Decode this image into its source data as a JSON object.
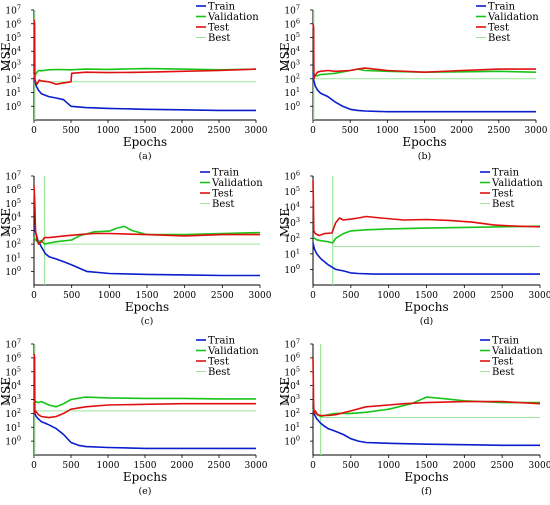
{
  "figure": {
    "panel_count": 6
  },
  "colors": {
    "train": "#0a1ecc",
    "validation": "#18c418",
    "test": "#e01010",
    "best": "#9be59b",
    "axis": "#000000"
  },
  "chart_data": [
    {
      "type": "line",
      "panel_label": "(a)",
      "xlabel": "Epochs",
      "ylabel": "MSE",
      "xlim": [
        0,
        3000
      ],
      "xticks": [
        0,
        500,
        1000,
        1500,
        2000,
        2500,
        3000
      ],
      "yscale": "log",
      "ylim_exp": [
        -1,
        7
      ],
      "yticks_exp": [
        0,
        1,
        2,
        3,
        4,
        5,
        6,
        7
      ],
      "legend": {
        "position": "top-right",
        "labels": [
          "Train",
          "Validation",
          "Test",
          "Best"
        ]
      },
      "best_epoch": 10,
      "best_value": 60,
      "series": [
        {
          "name": "Train",
          "x": [
            0,
            10,
            30,
            60,
            100,
            200,
            300,
            400,
            500,
            700,
            1000,
            1500,
            2000,
            2500,
            3000
          ],
          "y": [
            300,
            80,
            30,
            15,
            8,
            5,
            4,
            3,
            1,
            0.8,
            0.7,
            0.6,
            0.55,
            0.5,
            0.5
          ]
        },
        {
          "name": "Validation",
          "x": [
            0,
            10,
            30,
            60,
            100,
            200,
            300,
            500,
            700,
            1000,
            1500,
            2000,
            2500,
            3000
          ],
          "y": [
            200,
            150,
            250,
            400,
            380,
            450,
            470,
            450,
            500,
            480,
            550,
            500,
            450,
            500
          ]
        },
        {
          "name": "Test",
          "x": [
            0,
            8,
            12,
            20,
            40,
            70,
            100,
            200,
            300,
            400,
            500,
            510,
            700,
            1000,
            1500,
            2000,
            2500,
            3000
          ],
          "y": [
            2000000,
            1000000,
            100,
            60,
            40,
            80,
            70,
            60,
            40,
            50,
            60,
            250,
            300,
            280,
            300,
            350,
            400,
            500
          ]
        }
      ]
    },
    {
      "type": "line",
      "panel_label": "(b)",
      "xlabel": "Epochs",
      "ylabel": "MSE",
      "xlim": [
        0,
        3000
      ],
      "xticks": [
        0,
        500,
        1000,
        1500,
        2000,
        2500,
        3000
      ],
      "yscale": "log",
      "ylim_exp": [
        -1,
        7
      ],
      "yticks_exp": [
        0,
        1,
        2,
        3,
        4,
        5,
        6,
        7
      ],
      "legend": {
        "position": "top-right",
        "labels": [
          "Train",
          "Validation",
          "Test",
          "Best"
        ]
      },
      "best_epoch": 10,
      "best_value": 100,
      "series": [
        {
          "name": "Train",
          "x": [
            0,
            10,
            30,
            60,
            100,
            200,
            300,
            400,
            500,
            600,
            700,
            1000,
            1500,
            2000,
            2500,
            3000
          ],
          "y": [
            300,
            80,
            30,
            15,
            9,
            5,
            2,
            1,
            0.6,
            0.5,
            0.45,
            0.4,
            0.4,
            0.4,
            0.4,
            0.4
          ]
        },
        {
          "name": "Validation",
          "x": [
            0,
            10,
            30,
            100,
            200,
            300,
            500,
            600,
            700,
            1000,
            1500,
            2000,
            2500,
            3000
          ],
          "y": [
            300,
            250,
            150,
            200,
            220,
            250,
            400,
            500,
            400,
            350,
            300,
            320,
            350,
            300
          ]
        },
        {
          "name": "Test",
          "x": [
            0,
            8,
            12,
            20,
            60,
            100,
            200,
            300,
            500,
            600,
            700,
            1000,
            1500,
            2000,
            2500,
            3000
          ],
          "y": [
            1000000,
            500000,
            100,
            150,
            300,
            350,
            400,
            350,
            400,
            500,
            600,
            400,
            300,
            400,
            500,
            500
          ]
        }
      ]
    },
    {
      "type": "line",
      "panel_label": "(c)",
      "xlabel": "Epochs",
      "ylabel": "MSE",
      "xlim": [
        0,
        3000
      ],
      "xticks": [
        0,
        500,
        1000,
        1500,
        2000,
        2500,
        3000
      ],
      "yscale": "log",
      "ylim_exp": [
        -1,
        7
      ],
      "yticks_exp": [
        0,
        1,
        2,
        3,
        4,
        5,
        6,
        7
      ],
      "legend": {
        "position": "top-right",
        "labels": [
          "Train",
          "Validation",
          "Test",
          "Best"
        ]
      },
      "best_epoch": 140,
      "best_value": 100,
      "series": [
        {
          "name": "Train",
          "x": [
            0,
            20,
            50,
            100,
            150,
            200,
            300,
            400,
            500,
            700,
            1000,
            1500,
            2000,
            2500,
            3000
          ],
          "y": [
            2000,
            800,
            200,
            60,
            20,
            12,
            8,
            5,
            3,
            1,
            0.7,
            0.6,
            0.55,
            0.5,
            0.5
          ]
        },
        {
          "name": "Validation",
          "x": [
            0,
            20,
            50,
            100,
            140,
            200,
            300,
            500,
            600,
            800,
            1000,
            1100,
            1200,
            1300,
            1500,
            2000,
            2500,
            3000
          ],
          "y": [
            300,
            200,
            150,
            180,
            100,
            120,
            150,
            200,
            400,
            800,
            900,
            1500,
            2000,
            1000,
            500,
            500,
            600,
            700
          ]
        },
        {
          "name": "Test",
          "x": [
            0,
            10,
            20,
            40,
            60,
            100,
            140,
            200,
            400,
            600,
            800,
            1000,
            1500,
            2000,
            2500,
            3000
          ],
          "y": [
            2000000,
            100000,
            1000,
            200,
            100,
            150,
            300,
            300,
            400,
            500,
            600,
            600,
            500,
            400,
            500,
            500
          ]
        }
      ]
    },
    {
      "type": "line",
      "panel_label": "(d)",
      "xlabel": "Epochs",
      "ylabel": "MSE",
      "xlim": [
        0,
        3000
      ],
      "xticks": [
        0,
        500,
        1000,
        1500,
        2000,
        2500,
        3000
      ],
      "yscale": "log",
      "ylim_exp": [
        -1,
        6
      ],
      "yticks_exp": [
        0,
        1,
        2,
        3,
        4,
        5,
        6
      ],
      "legend": {
        "position": "top-right",
        "labels": [
          "Train",
          "Validation",
          "Test",
          "Best"
        ]
      },
      "best_epoch": 260,
      "best_value": 30,
      "series": [
        {
          "name": "Train",
          "x": [
            0,
            20,
            50,
            100,
            200,
            300,
            400,
            500,
            600,
            800,
            1000,
            1500,
            2000,
            2500,
            3000
          ],
          "y": [
            50,
            20,
            10,
            5,
            2,
            1,
            0.8,
            0.6,
            0.55,
            0.5,
            0.5,
            0.5,
            0.5,
            0.5,
            0.5
          ]
        },
        {
          "name": "Validation",
          "x": [
            0,
            20,
            50,
            100,
            200,
            260,
            300,
            400,
            500,
            700,
            1000,
            1500,
            2000,
            2500,
            3000
          ],
          "y": [
            120,
            100,
            80,
            70,
            60,
            50,
            100,
            200,
            300,
            350,
            400,
            450,
            500,
            550,
            600
          ]
        },
        {
          "name": "Test",
          "x": [
            0,
            5,
            10,
            30,
            80,
            150,
            250,
            300,
            350,
            400,
            500,
            600,
            700,
            900,
            1200,
            1500,
            1800,
            2100,
            2400,
            2700,
            3000
          ],
          "y": [
            500000,
            20000,
            300,
            200,
            150,
            200,
            220,
            1000,
            2000,
            1500,
            1700,
            2000,
            2500,
            2000,
            1500,
            1600,
            1400,
            1100,
            700,
            600,
            550
          ]
        }
      ]
    },
    {
      "type": "line",
      "panel_label": "(e)",
      "xlabel": "Epochs",
      "ylabel": "MSE",
      "xlim": [
        0,
        3000
      ],
      "xticks": [
        0,
        500,
        1000,
        1500,
        2000,
        2500,
        3000
      ],
      "yscale": "log",
      "ylim_exp": [
        -1,
        7
      ],
      "yticks_exp": [
        0,
        1,
        2,
        3,
        4,
        5,
        6,
        7
      ],
      "legend": {
        "position": "top-right",
        "labels": [
          "Train",
          "Validation",
          "Test",
          "Best"
        ]
      },
      "best_epoch": 10,
      "best_value": 150,
      "series": [
        {
          "name": "Train",
          "x": [
            0,
            10,
            30,
            60,
            100,
            150,
            200,
            300,
            400,
            500,
            600,
            700,
            1000,
            1500,
            2000,
            2500,
            3000
          ],
          "y": [
            150,
            100,
            60,
            40,
            25,
            20,
            15,
            8,
            3,
            0.8,
            0.5,
            0.4,
            0.35,
            0.3,
            0.3,
            0.3,
            0.3
          ]
        },
        {
          "name": "Validation",
          "x": [
            0,
            10,
            30,
            60,
            100,
            200,
            300,
            400,
            500,
            700,
            1000,
            1500,
            2000,
            2500,
            3000
          ],
          "y": [
            800,
            600,
            700,
            600,
            700,
            400,
            300,
            500,
            1000,
            1500,
            1300,
            1200,
            1200,
            1100,
            1100
          ]
        },
        {
          "name": "Test",
          "x": [
            0,
            8,
            12,
            20,
            60,
            100,
            200,
            300,
            400,
            500,
            700,
            1000,
            1500,
            2000,
            2500,
            3000
          ],
          "y": [
            2000000,
            1000000,
            100,
            150,
            80,
            60,
            50,
            60,
            100,
            200,
            300,
            400,
            450,
            500,
            500,
            500
          ]
        }
      ]
    },
    {
      "type": "line",
      "panel_label": "(f)",
      "xlabel": "Epochs",
      "ylabel": "MSE",
      "xlim": [
        0,
        3000
      ],
      "xticks": [
        0,
        500,
        1000,
        1500,
        2000,
        2500,
        3000
      ],
      "yscale": "log",
      "ylim_exp": [
        -1,
        7
      ],
      "yticks_exp": [
        0,
        1,
        2,
        3,
        4,
        5,
        6,
        7
      ],
      "legend": {
        "position": "top-right",
        "labels": [
          "Train",
          "Validation",
          "Test",
          "Best"
        ]
      },
      "best_epoch": 100,
      "best_value": 50,
      "series": [
        {
          "name": "Train",
          "x": [
            0,
            20,
            50,
            100,
            150,
            200,
            300,
            400,
            500,
            600,
            700,
            1000,
            1500,
            2000,
            2500,
            3000
          ],
          "y": [
            150,
            80,
            40,
            20,
            12,
            8,
            5,
            3,
            1.5,
            1,
            0.8,
            0.7,
            0.6,
            0.55,
            0.5,
            0.5
          ]
        },
        {
          "name": "Validation",
          "x": [
            0,
            10,
            30,
            60,
            100,
            200,
            300,
            500,
            700,
            1000,
            1300,
            1500,
            1700,
            2000,
            2500,
            3000
          ],
          "y": [
            200,
            150,
            100,
            80,
            60,
            80,
            100,
            100,
            120,
            200,
            500,
            1500,
            1200,
            800,
            600,
            600
          ]
        },
        {
          "name": "Test",
          "x": [
            0,
            8,
            15,
            30,
            60,
            100,
            200,
            300,
            500,
            700,
            1000,
            1200,
            1500,
            2000,
            2500,
            3000
          ],
          "y": [
            1000000,
            500,
            100,
            150,
            80,
            70,
            70,
            80,
            150,
            300,
            400,
            500,
            600,
            700,
            700,
            500
          ]
        }
      ]
    }
  ]
}
